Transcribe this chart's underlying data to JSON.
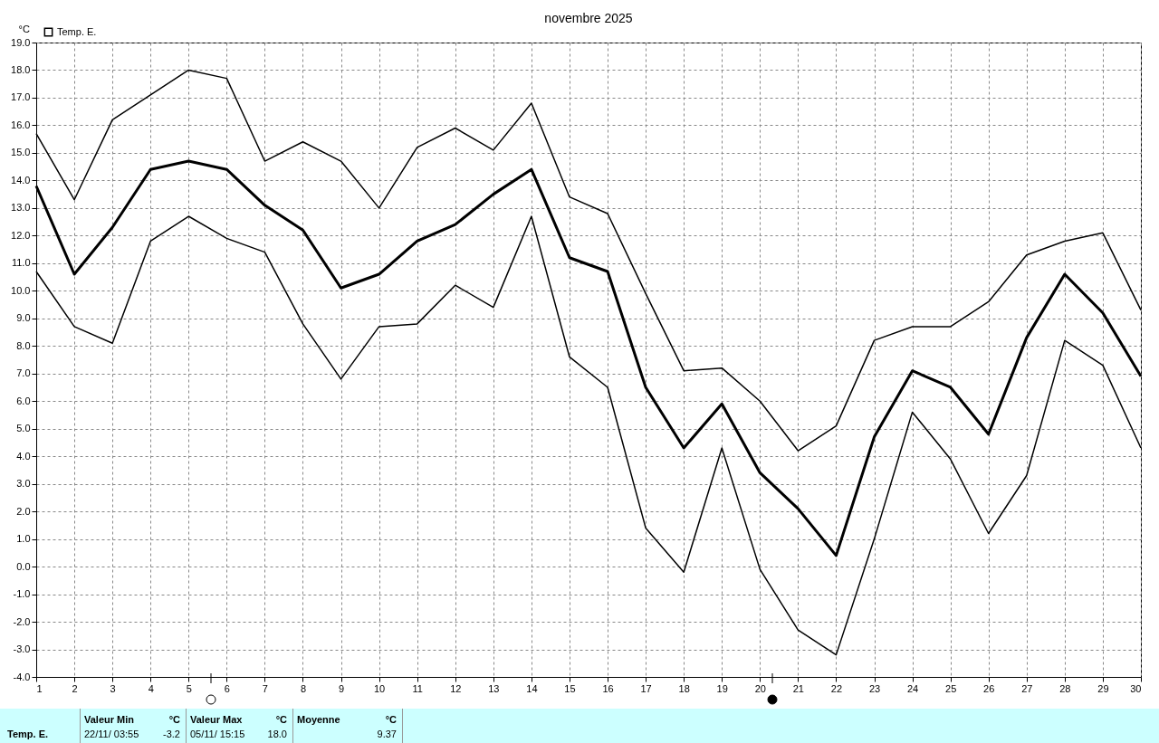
{
  "chart_data": {
    "type": "line",
    "title": "novembre 2025",
    "ylabel": "°C",
    "x": [
      1,
      2,
      3,
      4,
      5,
      6,
      7,
      8,
      9,
      10,
      11,
      12,
      13,
      14,
      15,
      16,
      17,
      18,
      19,
      20,
      21,
      22,
      23,
      24,
      25,
      26,
      27,
      28,
      29,
      30
    ],
    "series": [
      {
        "color": "#000000",
        "values": [
          15.7,
          13.3,
          16.2,
          17.1,
          18.0,
          17.7,
          14.7,
          15.4,
          14.7,
          13.0,
          15.2,
          15.9,
          15.1,
          16.8,
          13.4,
          12.8,
          9.9,
          7.1,
          7.2,
          6.0,
          4.2,
          5.1,
          8.2,
          8.7,
          8.7,
          9.6,
          11.3,
          11.8,
          12.1,
          9.3
        ]
      },
      {
        "name": "Temp. E.",
        "color": "#000000",
        "values": [
          13.8,
          10.6,
          12.3,
          14.4,
          14.7,
          14.4,
          13.1,
          12.2,
          10.1,
          10.6,
          11.8,
          12.4,
          13.5,
          14.4,
          11.2,
          10.7,
          6.5,
          4.3,
          5.9,
          3.4,
          2.1,
          0.4,
          4.7,
          7.1,
          6.5,
          4.8,
          8.3,
          10.6,
          9.2,
          6.9
        ]
      },
      {
        "color": "#000000",
        "values": [
          10.7,
          8.7,
          8.1,
          11.8,
          12.7,
          11.9,
          11.4,
          8.8,
          6.8,
          8.7,
          8.8,
          10.2,
          9.4,
          12.7,
          7.6,
          6.5,
          1.4,
          -0.2,
          4.3,
          -0.1,
          -2.3,
          -3.2,
          1.0,
          5.6,
          3.9,
          1.2,
          3.3,
          8.2,
          7.3,
          4.3
        ]
      }
    ],
    "xlim": [
      1,
      30
    ],
    "xticks": [
      1,
      2,
      3,
      4,
      5,
      6,
      7,
      8,
      9,
      10,
      11,
      12,
      13,
      14,
      15,
      16,
      17,
      18,
      19,
      20,
      21,
      22,
      23,
      24,
      25,
      26,
      27,
      28,
      29,
      30
    ],
    "ylim": [
      -4,
      19
    ],
    "yticks": [
      {
        "value": -4,
        "label": "-4.0"
      },
      {
        "value": -3,
        "label": "-3.0"
      },
      {
        "value": -2,
        "label": "-2.0"
      },
      {
        "value": -1,
        "label": "-1.0"
      },
      {
        "value": 0,
        "label": "0.0"
      },
      {
        "value": 1,
        "label": "1.0"
      },
      {
        "value": 2,
        "label": "2.0"
      },
      {
        "value": 3,
        "label": "3.0"
      },
      {
        "value": 4,
        "label": "4.0"
      },
      {
        "value": 5,
        "label": "5.0"
      },
      {
        "value": 6,
        "label": "6.0"
      },
      {
        "value": 7,
        "label": "7.0"
      },
      {
        "value": 8,
        "label": "8.0"
      },
      {
        "value": 9,
        "label": "9.0"
      },
      {
        "value": 10,
        "label": "10.0"
      },
      {
        "value": 11,
        "label": "11.0"
      },
      {
        "value": 12,
        "label": "12.0"
      },
      {
        "value": 13,
        "label": "13.0"
      },
      {
        "value": 14,
        "label": "14.0"
      },
      {
        "value": 15,
        "label": "15.0"
      },
      {
        "value": 16,
        "label": "16.0"
      },
      {
        "value": 17,
        "label": "17.0"
      },
      {
        "value": 18,
        "label": "18.0"
      },
      {
        "value": 19,
        "label": "19.0"
      }
    ],
    "grid": true,
    "legend": "top left",
    "line_style": "solid",
    "marker": "none",
    "annotations": [
      "Temp. E.",
      "Valeur Min",
      "°C",
      "22/11/ 03:55",
      "-3.2",
      "Valeur Max",
      "°C",
      "05/11/ 15:15",
      "18.0",
      "Moyenne",
      "°C",
      "9.37"
    ]
  }
}
